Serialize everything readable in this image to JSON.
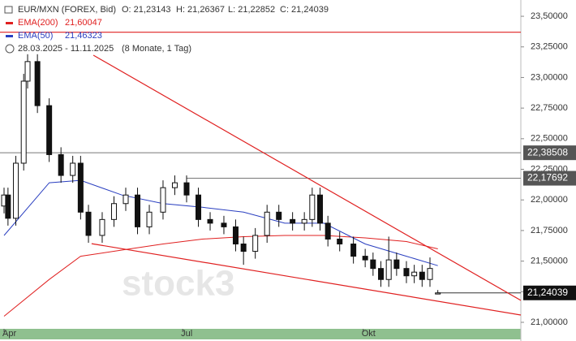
{
  "chart_data": {
    "type": "candlestick",
    "symbol": "EUR/MXN (FOREX, Bid)",
    "ohlc_labels": [
      "O: 21,23143",
      "H: 21,26367",
      "L: 21,22852",
      "C: 21,24039"
    ],
    "date_range": "28.03.2025 - 11.11.2025",
    "period": "(8 Monate, 1 Tag)",
    "watermark": "stock3",
    "xlim": [
      -2.07,
      263.3
    ],
    "xticks": [
      {
        "value": 0,
        "label": "Apr"
      },
      {
        "value": 91,
        "label": "Jul"
      },
      {
        "value": 183,
        "label": "Okt"
      }
    ],
    "ylim": [
      20.947,
      23.633
    ],
    "yticks": [
      {
        "value": 21.0,
        "label": "21,00000"
      },
      {
        "value": 21.25,
        "label": "21,25000"
      },
      {
        "value": 21.5,
        "label": "21,50000"
      },
      {
        "value": 21.75,
        "label": "21,75000"
      },
      {
        "value": 22.0,
        "label": "22,00000"
      },
      {
        "value": 22.25,
        "label": "22,25000"
      },
      {
        "value": 22.5,
        "label": "22,50000"
      },
      {
        "value": 22.75,
        "label": "22,75000"
      },
      {
        "value": 23.0,
        "label": "23,00000"
      },
      {
        "value": 23.25,
        "label": "23,25000"
      },
      {
        "value": 23.5,
        "label": "23,50000"
      }
    ],
    "x": [
      0,
      2,
      6,
      10,
      12,
      17,
      23,
      29,
      35,
      39,
      43,
      50,
      56,
      62,
      68,
      74,
      81,
      87,
      93,
      99,
      105,
      112,
      118,
      122,
      128,
      134,
      140,
      147,
      153,
      157,
      161,
      165,
      171,
      178,
      184,
      188,
      192,
      196,
      200,
      205,
      209,
      213,
      217,
      221
    ],
    "open": [
      21.95,
      22.04,
      21.85,
      22.3,
      22.97,
      23.13,
      22.77,
      22.37,
      22.2,
      22.3,
      21.9,
      21.71,
      21.84,
      21.97,
      22.04,
      21.78,
      21.9,
      22.1,
      22.14,
      22.04,
      21.84,
      21.81,
      21.78,
      21.64,
      21.58,
      21.71,
      21.9,
      21.84,
      21.81,
      21.84,
      22.04,
      21.81,
      21.68,
      21.64,
      21.54,
      21.51,
      21.44,
      21.35,
      21.51,
      21.44,
      21.38,
      21.41,
      21.35,
      21.23143
    ],
    "high": [
      22.1,
      22.1,
      22.36,
      23.03,
      23.19,
      23.19,
      22.83,
      22.43,
      22.36,
      22.36,
      21.96,
      21.9,
      22.03,
      22.1,
      22.1,
      21.96,
      22.16,
      22.2,
      22.2,
      22.1,
      21.9,
      21.87,
      21.84,
      21.7,
      21.77,
      21.96,
      21.96,
      21.9,
      21.9,
      22.1,
      22.1,
      21.87,
      21.74,
      21.7,
      21.6,
      21.57,
      21.5,
      21.7,
      21.57,
      21.5,
      21.47,
      21.47,
      21.53,
      21.26367
    ],
    "low": [
      21.89,
      21.79,
      21.79,
      22.24,
      22.91,
      22.71,
      22.31,
      22.14,
      22.14,
      21.84,
      21.65,
      21.65,
      21.78,
      21.91,
      21.72,
      21.72,
      21.84,
      22.04,
      21.98,
      21.78,
      21.75,
      21.72,
      21.58,
      21.47,
      21.52,
      21.65,
      21.78,
      21.75,
      21.75,
      21.78,
      21.75,
      21.62,
      21.58,
      21.48,
      21.45,
      21.38,
      21.29,
      21.29,
      21.38,
      21.32,
      21.32,
      21.29,
      21.29,
      21.22852
    ],
    "close": [
      22.04,
      21.85,
      22.3,
      22.97,
      23.13,
      22.77,
      22.37,
      22.2,
      22.3,
      21.9,
      21.71,
      21.84,
      21.97,
      22.04,
      21.78,
      21.9,
      22.1,
      22.14,
      22.04,
      21.84,
      21.81,
      21.78,
      21.64,
      21.58,
      21.71,
      21.9,
      21.84,
      21.81,
      21.84,
      22.04,
      21.81,
      21.68,
      21.64,
      21.54,
      21.51,
      21.44,
      21.35,
      21.51,
      21.44,
      21.38,
      21.41,
      21.35,
      21.44,
      21.24039
    ],
    "series": [
      {
        "name": "EMA(200)",
        "color": "#e02020",
        "last_value_label": "21,60047",
        "x": [
          0,
          23,
          39,
          60,
          81,
          101,
          122,
          143,
          163,
          184,
          205,
          221
        ],
        "values": [
          21.05,
          21.35,
          21.54,
          21.59,
          21.64,
          21.68,
          21.7,
          21.71,
          21.71,
          21.69,
          21.66,
          21.60047
        ]
      },
      {
        "name": "EMA(50)",
        "color": "#2a3fc0",
        "last_value_label": "21,46323",
        "x": [
          0,
          23,
          39,
          60,
          81,
          101,
          122,
          143,
          163,
          184,
          205,
          221
        ],
        "values": [
          21.71,
          22.14,
          22.16,
          22.04,
          21.97,
          21.94,
          21.9,
          21.81,
          21.81,
          21.64,
          21.54,
          21.46323
        ]
      }
    ],
    "trendlines": [
      {
        "color": "#e02020",
        "x": [
          45.5,
          263.3
        ],
        "values": [
          23.182,
          21.179
        ]
      },
      {
        "color": "#e02020",
        "x": [
          44.6,
          263.3
        ],
        "values": [
          21.643,
          21.06
        ]
      },
      {
        "color": "#e02020",
        "x": [
          -2.07,
          263.3
        ],
        "values": [
          23.37,
          23.37
        ]
      }
    ],
    "levels": [
      {
        "value": 22.38508,
        "label": "22,38508",
        "from": -2.07
      },
      {
        "value": 22.17692,
        "label": "22,17692",
        "from": 93
      }
    ],
    "last_price": {
      "value": 21.24039,
      "label": "21,24039"
    }
  }
}
